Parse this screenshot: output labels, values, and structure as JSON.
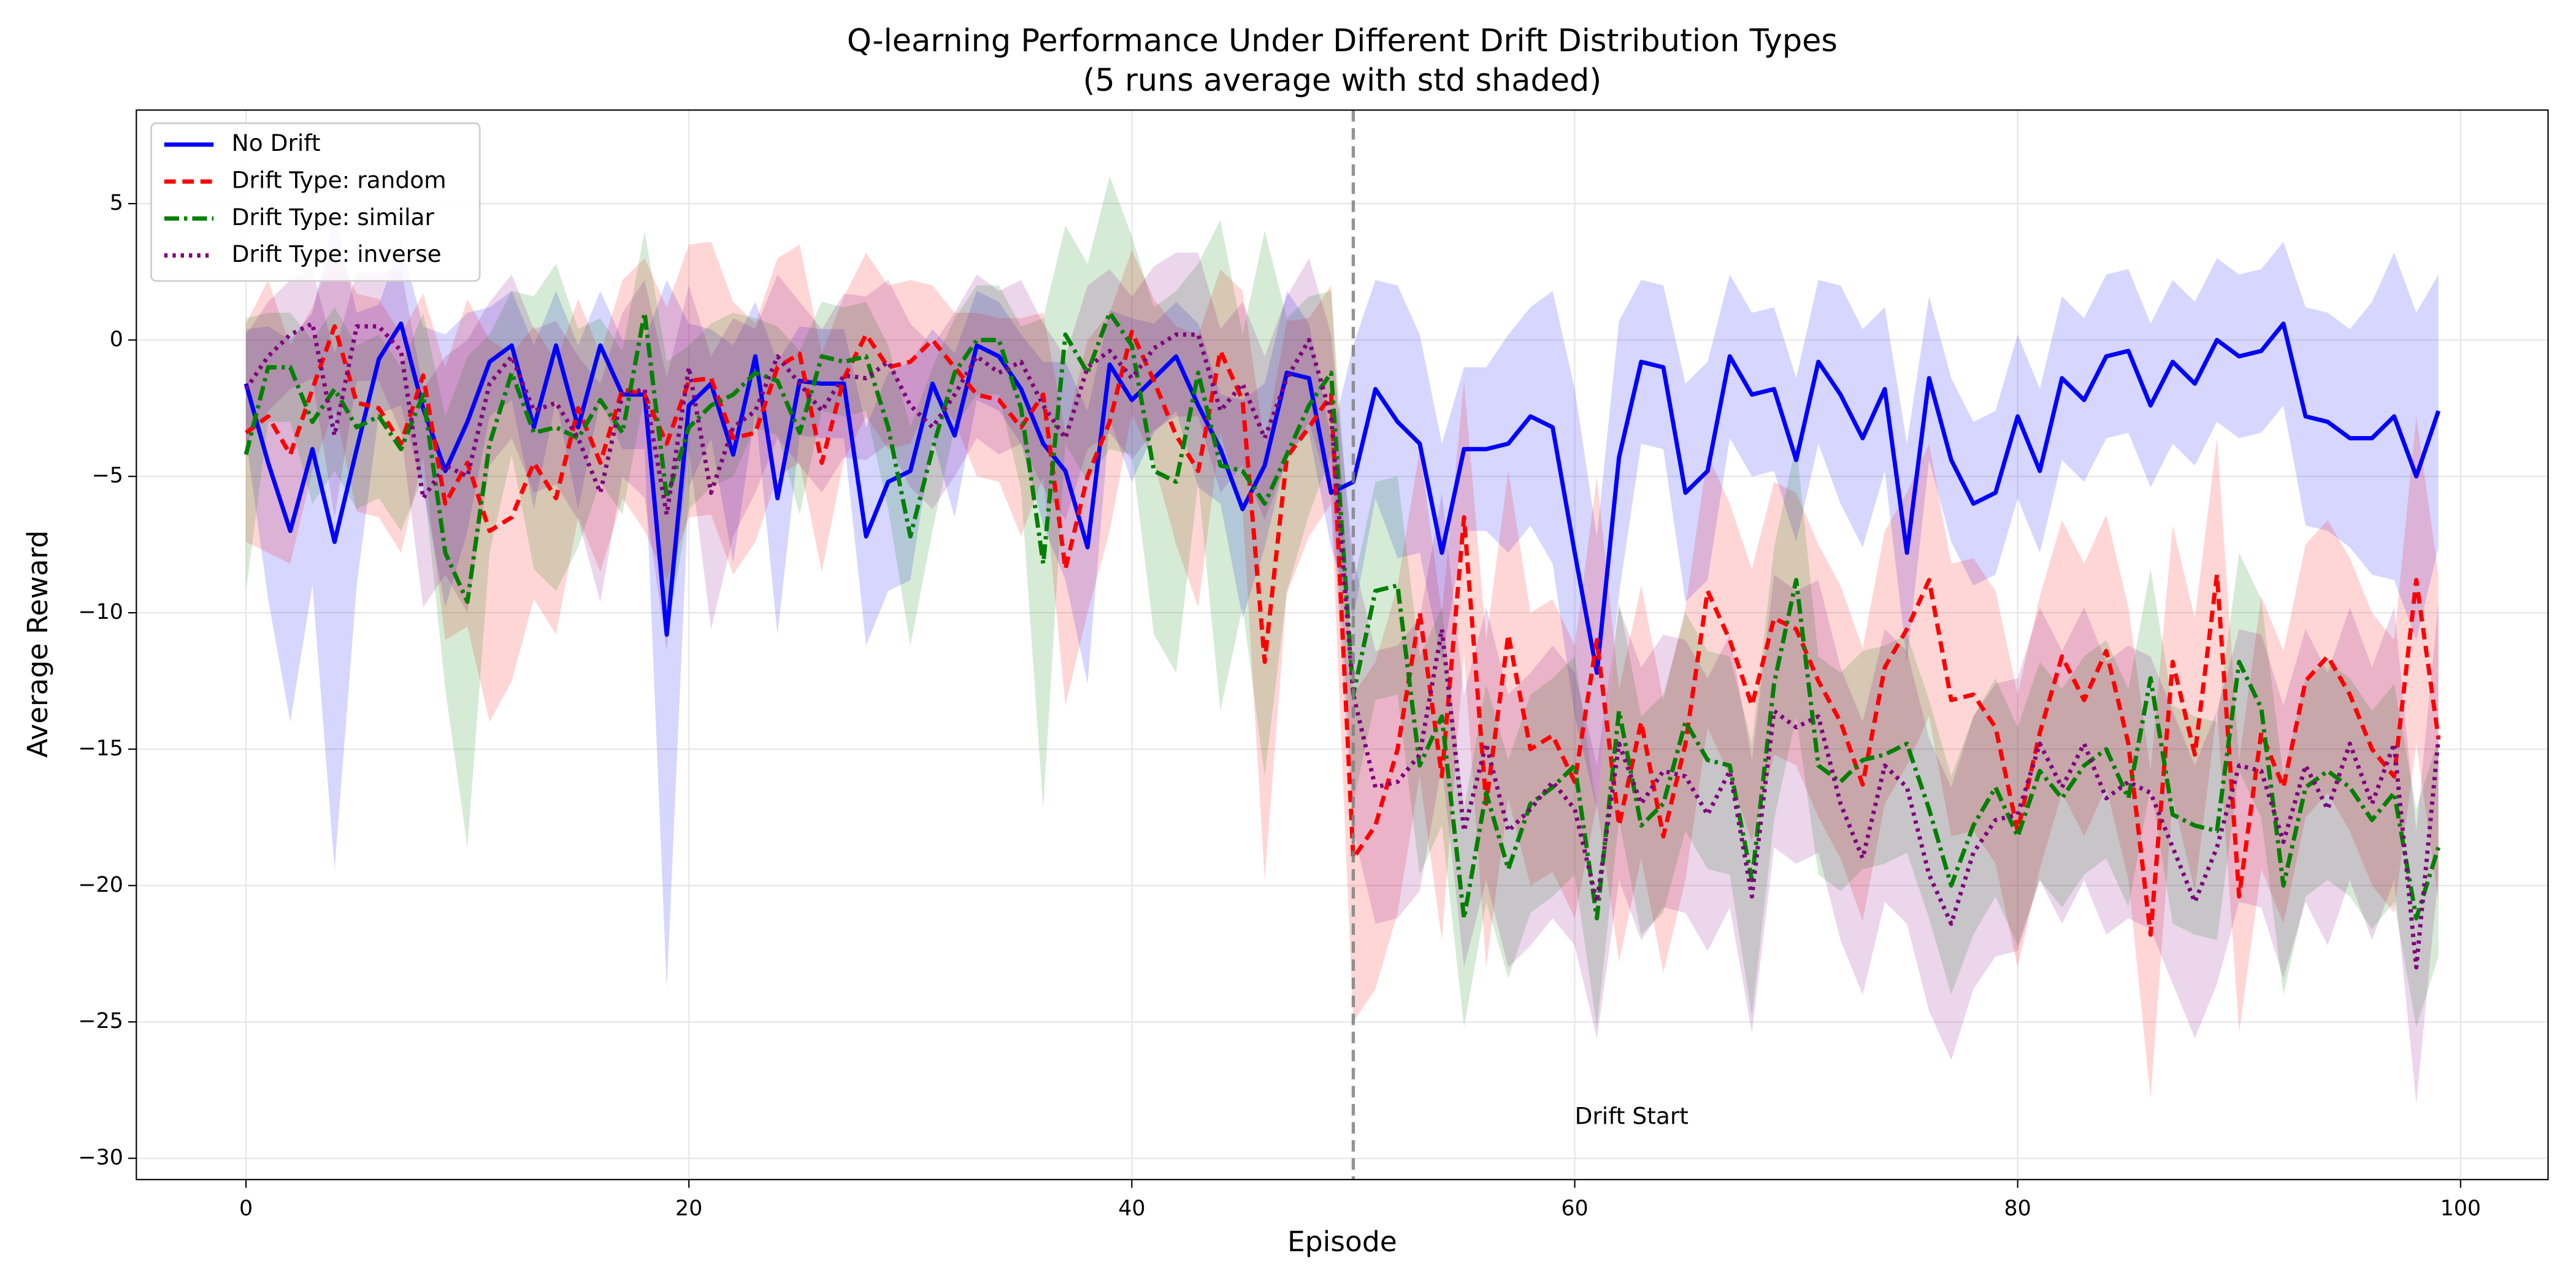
{
  "chart_data": {
    "type": "line",
    "title": "Q-learning Performance Under Different Drift Distribution Types",
    "subtitle": "(5 runs average with std shaded)",
    "x_label": "Episode",
    "y_label": "Average Reward",
    "xlim": [
      -4.95,
      103.95
    ],
    "ylim": [
      -30.78,
      8.43
    ],
    "xticks": [
      0,
      20,
      40,
      60,
      80,
      100
    ],
    "yticks": [
      {
        "value": -30,
        "label": "−30"
      },
      {
        "value": -25,
        "label": "−25"
      },
      {
        "value": -20,
        "label": "−20"
      },
      {
        "value": -15,
        "label": "−15"
      },
      {
        "value": -10,
        "label": "−10"
      },
      {
        "value": -5,
        "label": "−5"
      },
      0,
      5
    ],
    "grid": true,
    "legend": "upper left",
    "vline": {
      "x": 50,
      "color": "#808080"
    },
    "annotation": {
      "text": "Drift Start",
      "x": 60,
      "y": -28.5,
      "color": "#808080"
    },
    "x": [
      0,
      1,
      2,
      3,
      4,
      5,
      6,
      7,
      8,
      9,
      10,
      11,
      12,
      13,
      14,
      15,
      16,
      17,
      18,
      19,
      20,
      21,
      22,
      23,
      24,
      25,
      26,
      27,
      28,
      29,
      30,
      31,
      32,
      33,
      34,
      35,
      36,
      37,
      38,
      39,
      40,
      41,
      42,
      43,
      44,
      45,
      46,
      47,
      48,
      49,
      50,
      51,
      52,
      53,
      54,
      55,
      56,
      57,
      58,
      59,
      60,
      61,
      62,
      63,
      64,
      65,
      66,
      67,
      68,
      69,
      70,
      71,
      72,
      73,
      74,
      75,
      76,
      77,
      78,
      79,
      80,
      81,
      82,
      83,
      84,
      85,
      86,
      87,
      88,
      89,
      90,
      91,
      92,
      93,
      94,
      95,
      96,
      97,
      98,
      99
    ],
    "series": [
      {
        "name": "No Drift",
        "color": "#0000ff",
        "linestyle": "solid",
        "values": [
          -1.6,
          -4.5,
          -7,
          -4,
          -7.4,
          -4,
          -0.7,
          0.6,
          -2.5,
          -4.8,
          -3,
          -0.8,
          -0.2,
          -3.2,
          -0.2,
          -3.2,
          -0.2,
          -2,
          -2,
          -10.8,
          -2.4,
          -1.6,
          -4.2,
          -0.6,
          -5.8,
          -1.5,
          -1.6,
          -1.6,
          -7.2,
          -5.2,
          -4.8,
          -1.6,
          -3.5,
          -0.2,
          -0.6,
          -1.8,
          -3.8,
          -4.8,
          -7.6,
          -0.9,
          -2.2,
          -1.4,
          -0.6,
          -2.4,
          -4,
          -6.2,
          -4.6,
          -1.2,
          -1.4,
          -5.6,
          -5.2,
          -1.8,
          -3,
          -3.8,
          -7.8,
          -4,
          -4,
          -3.8,
          -2.8,
          -3.2,
          -7.8,
          -12.2,
          -4.3,
          -0.8,
          -1,
          -5.6,
          -4.8,
          -0.6,
          -2,
          -1.8,
          -4.4,
          -0.8,
          -2,
          -3.6,
          -1.8,
          -7.8,
          -1.4,
          -4.4,
          -6,
          -5.6,
          -2.8,
          -4.8,
          -1.4,
          -2.2,
          -0.6,
          -0.4,
          -2.4,
          -0.8,
          -1.6,
          0,
          -0.6,
          -0.4,
          0.6,
          -2.8,
          -3,
          -3.6,
          -3.6,
          -2.8,
          -5,
          -2.6
        ],
        "std": [
          2,
          5,
          7,
          5,
          12,
          5,
          2,
          3,
          3,
          5,
          4,
          2,
          2,
          3,
          2,
          3,
          2,
          2,
          2,
          13,
          3,
          2,
          4,
          2,
          5,
          2,
          2,
          2,
          4,
          4,
          4,
          2,
          3,
          2,
          2,
          2,
          3,
          4,
          5,
          2,
          3,
          2,
          2,
          3,
          2,
          4,
          3,
          3,
          2,
          2,
          5,
          4,
          5,
          4,
          4,
          3,
          3,
          4,
          4,
          5,
          6,
          5,
          5,
          3,
          3,
          4,
          4,
          3,
          3,
          3,
          3,
          3,
          4,
          4,
          3,
          4,
          3,
          3,
          3,
          3,
          3,
          3,
          3,
          3,
          3,
          3,
          3,
          3,
          3,
          3,
          3,
          3,
          3,
          4,
          4,
          4,
          5,
          6,
          6,
          5
        ]
      },
      {
        "name": "Drift Type: random",
        "color": "#ff0000",
        "linestyle": "dashed",
        "values": [
          -3.4,
          -2.8,
          -4.2,
          -1.8,
          0.5,
          -2.3,
          -2.5,
          -3.8,
          -1.3,
          -6,
          -4.5,
          -7,
          -6.5,
          -4.5,
          -5.8,
          -2.5,
          -4.5,
          -1.8,
          -2,
          -3.8,
          -1.5,
          -1.4,
          -3.6,
          -3.4,
          -1,
          -0.5,
          -4.5,
          -1.4,
          0.2,
          -1,
          -0.8,
          0,
          -1,
          -2,
          -2.2,
          -3.2,
          -2,
          -8.4,
          -5,
          -3,
          0.3,
          -1.5,
          -3.5,
          -4.8,
          -0.4,
          -2.2,
          -11.8,
          -4.3,
          -3.2,
          -2,
          -19,
          -17.8,
          -15,
          -10,
          -16,
          -6.5,
          -17,
          -10.8,
          -15,
          -14.5,
          -16.2,
          -11,
          -17.8,
          -14,
          -18.2,
          -14.8,
          -9.2,
          -11,
          -13.4,
          -10.2,
          -10.6,
          -12.5,
          -14,
          -16.3,
          -12,
          -10.6,
          -8.8,
          -13.2,
          -13,
          -14.2,
          -18,
          -14.4,
          -11.6,
          -13.2,
          -11.4,
          -14.8,
          -21.8,
          -11.8,
          -15.2,
          -8.6,
          -20.4,
          -14.4,
          -16.4,
          -12.5,
          -11.6,
          -13,
          -15,
          -16,
          -8.8,
          -14.6
        ],
        "std": [
          4,
          5,
          4,
          3,
          3,
          4,
          4,
          4,
          3,
          5,
          6,
          7,
          6,
          5,
          5,
          4,
          4,
          4,
          5,
          5,
          5,
          5,
          5,
          4,
          4,
          4,
          4,
          3,
          3,
          3,
          3,
          2,
          2,
          3,
          3,
          4,
          3,
          5,
          5,
          4,
          3,
          3,
          4,
          5,
          3,
          4,
          8,
          5,
          4,
          4,
          6,
          6,
          6,
          6,
          6,
          5,
          6,
          6,
          5,
          5,
          5,
          6,
          5,
          5,
          5,
          5,
          5,
          5,
          5,
          5,
          5,
          5,
          5,
          5,
          5,
          5,
          5,
          5,
          5,
          5,
          5,
          5,
          5,
          5,
          5,
          5,
          6,
          5,
          5,
          5,
          5,
          5,
          5,
          5,
          5,
          5,
          5,
          5,
          6,
          6
        ]
      },
      {
        "name": "Drift Type: similar",
        "color": "#008000",
        "linestyle": "dashdot",
        "values": [
          -4.2,
          -1,
          -1,
          -3,
          -1.8,
          -3.2,
          -2.8,
          -4,
          -2,
          -7.8,
          -9.6,
          -3.8,
          -1.2,
          -3.4,
          -3.2,
          -3.6,
          -2.2,
          -3.4,
          1,
          -5.8,
          -3.2,
          -2.4,
          -2,
          -1.2,
          -1.5,
          -3.4,
          -0.6,
          -0.8,
          -0.6,
          -3.2,
          -7.2,
          -4,
          -1.2,
          0,
          0,
          -2.5,
          -8.2,
          0.2,
          -1.2,
          1,
          -0.2,
          -4.8,
          -5.2,
          -1.2,
          -4.6,
          -4.8,
          -6,
          -4.2,
          -2.4,
          -1.2,
          -13,
          -9.2,
          -9,
          -15.6,
          -13.8,
          -21.2,
          -16.6,
          -19.4,
          -17,
          -16.4,
          -15.6,
          -21.2,
          -13.6,
          -17.8,
          -17,
          -14,
          -15.4,
          -15.6,
          -19.8,
          -12.6,
          -8.8,
          -15.6,
          -16.2,
          -15.4,
          -15.2,
          -14.8,
          -17.2,
          -20,
          -17.8,
          -16.4,
          -18.2,
          -15.8,
          -16.8,
          -15.6,
          -15,
          -16.8,
          -12.4,
          -17.4,
          -17.8,
          -18,
          -11.8,
          -13.5,
          -20,
          -16.4,
          -15.8,
          -16.4,
          -17.6,
          -16.6,
          -21.2,
          -18.6
        ],
        "std": [
          5,
          2,
          2,
          3,
          3,
          3,
          3,
          3,
          3,
          5,
          9,
          4,
          3,
          5,
          6,
          4,
          3,
          3,
          3,
          5,
          3,
          3,
          3,
          2,
          2,
          3,
          2,
          2,
          2,
          3,
          4,
          3,
          2,
          2,
          2,
          3,
          9,
          4,
          4,
          5,
          4,
          6,
          7,
          4,
          9,
          5,
          10,
          5,
          4,
          3,
          4,
          4,
          4,
          4,
          4,
          4,
          4,
          4,
          4,
          4,
          4,
          4,
          4,
          4,
          4,
          4,
          4,
          4,
          5,
          5,
          5,
          4,
          4,
          4,
          4,
          4,
          4,
          4,
          4,
          4,
          4,
          4,
          4,
          4,
          4,
          4,
          4,
          4,
          4,
          4,
          4,
          4,
          4,
          4,
          4,
          4,
          4,
          4,
          4,
          4
        ]
      },
      {
        "name": "Drift Type: inverse",
        "color": "#800080",
        "linestyle": "dotted",
        "values": [
          -1.8,
          -0.6,
          0.2,
          0.6,
          -3.5,
          0.5,
          0.5,
          -0.4,
          -5.8,
          -4.6,
          -5,
          -1.6,
          -0.6,
          -2.6,
          -2.3,
          -3.6,
          -5.6,
          -2,
          -1.8,
          -6.4,
          -1,
          -5.6,
          -3.2,
          -2.6,
          -0.6,
          -1.6,
          -2.6,
          -1.3,
          -1.4,
          -0.8,
          -2.4,
          -3.2,
          -2,
          -0.6,
          -1.2,
          -0.8,
          -2.4,
          -3.6,
          -1,
          -0.4,
          -1.4,
          -0.3,
          0.2,
          0.2,
          -2.6,
          -1.6,
          -3.6,
          -1.4,
          0,
          -2.8,
          -13,
          -16.4,
          -16.2,
          -15.2,
          -10.6,
          -18,
          -14.8,
          -18,
          -17.2,
          -16.2,
          -17.2,
          -20.6,
          -14.8,
          -17,
          -15.8,
          -16,
          -17.4,
          -15.8,
          -20.4,
          -13.6,
          -14.2,
          -13.8,
          -17,
          -19,
          -15.6,
          -16.4,
          -19.6,
          -21.4,
          -18.8,
          -17.6,
          -17.4,
          -14.8,
          -16.4,
          -14.8,
          -16.8,
          -16.2,
          -16.6,
          -18.6,
          -20.6,
          -18.6,
          -15.6,
          -15.8,
          -18.4,
          -15.6,
          -17.2,
          -14.8,
          -17,
          -14.8,
          -23,
          -14.6
        ],
        "std": [
          2,
          2,
          2,
          2,
          3,
          2,
          2,
          3,
          4,
          4,
          5,
          3,
          3,
          3,
          3,
          3,
          4,
          3,
          4,
          5,
          3,
          5,
          4,
          3,
          3,
          3,
          3,
          3,
          3,
          3,
          3,
          3,
          3,
          3,
          3,
          3,
          3,
          3,
          3,
          3,
          3,
          3,
          3,
          3,
          3,
          3,
          3,
          3,
          3,
          3,
          5,
          5,
          5,
          5,
          5,
          5,
          5,
          5,
          5,
          5,
          5,
          5,
          5,
          5,
          5,
          5,
          5,
          5,
          5,
          5,
          5,
          5,
          5,
          5,
          5,
          5,
          5,
          5,
          5,
          5,
          5,
          5,
          5,
          5,
          5,
          5,
          5,
          5,
          5,
          5,
          5,
          5,
          5,
          5,
          5,
          5,
          5,
          5,
          5,
          5
        ]
      }
    ]
  }
}
